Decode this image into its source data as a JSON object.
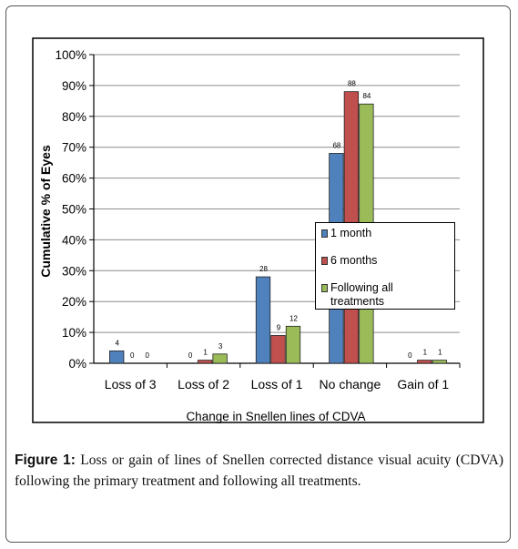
{
  "figure": {
    "label": "Figure 1:",
    "caption": " Loss or gain of lines of Snellen corrected distance visual acuity (CDVA) following the primary treatment and following all treatments."
  },
  "chart_data": {
    "type": "bar",
    "title": "",
    "xlabel": "Change in Snellen lines of CDVA",
    "ylabel": "Cumulative % of Eyes",
    "categories": [
      "Loss of 3",
      "Loss of 2",
      "Loss of 1",
      "No change",
      "Gain of 1"
    ],
    "ylim": [
      0,
      100
    ],
    "yticks": [
      "0%",
      "10%",
      "20%",
      "30%",
      "40%",
      "50%",
      "60%",
      "70%",
      "80%",
      "90%",
      "100%"
    ],
    "grid": true,
    "legend_position": "right",
    "series": [
      {
        "name": "1 month",
        "color": "#4F81BD",
        "values": [
          4,
          0,
          28,
          68,
          0
        ]
      },
      {
        "name": "6 months",
        "color": "#C0504D",
        "values": [
          0,
          1,
          9,
          88,
          1
        ]
      },
      {
        "name": "Following all treatments",
        "color": "#9BBB59",
        "values": [
          0,
          3,
          12,
          84,
          1
        ]
      }
    ]
  }
}
